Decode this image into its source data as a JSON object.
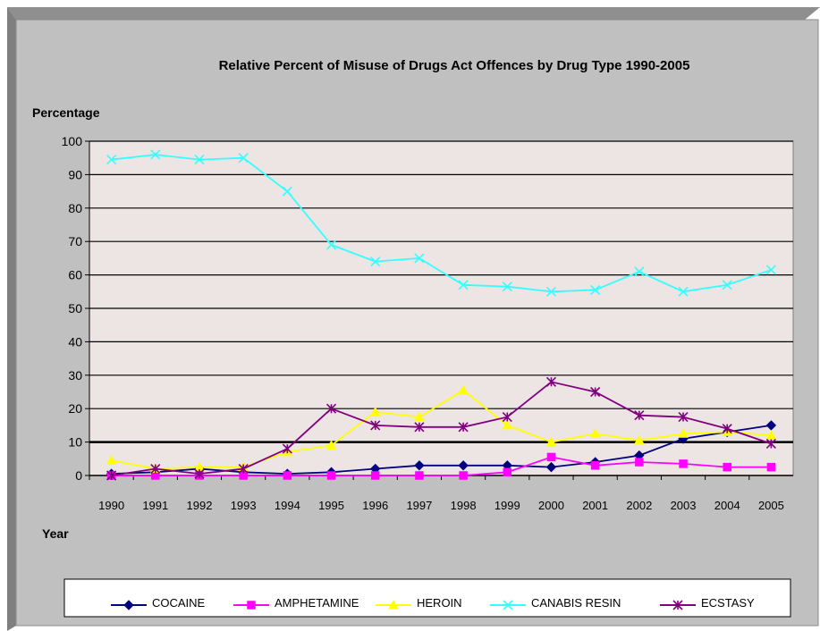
{
  "chart_data": {
    "type": "line",
    "title": "Relative Percent of Misuse of Drugs Act Offences by Drug Type 1990-2005",
    "ylabel": "Percentage",
    "xlabel": "Year",
    "ylim": [
      0,
      100
    ],
    "yticks": [
      "0",
      "10",
      "20",
      "30",
      "40",
      "50",
      "60",
      "70",
      "80",
      "90",
      "100"
    ],
    "categories": [
      "1990",
      "1991",
      "1992",
      "1993",
      "1994",
      "1995",
      "1996",
      "1997",
      "1998",
      "1999",
      "2000",
      "2001",
      "2002",
      "2003",
      "2004",
      "2005"
    ],
    "grid": true,
    "legend_position": "bottom",
    "series": [
      {
        "name": "COCAINE",
        "color": "#000080",
        "marker": "diamond",
        "values": [
          0.5,
          1,
          2,
          1,
          0.5,
          1,
          2,
          3,
          3,
          3,
          2.5,
          4,
          6,
          11,
          13,
          15
        ]
      },
      {
        "name": "AMPHETAMINE",
        "color": "#ff00ff",
        "marker": "square",
        "values": [
          0,
          0,
          0,
          0,
          0,
          0,
          0,
          0,
          0,
          1,
          5.5,
          3,
          4,
          3.5,
          2.5,
          2.5
        ]
      },
      {
        "name": "HEROIN",
        "color": "#ffff00",
        "marker": "triangle",
        "values": [
          4.5,
          2,
          2.5,
          2.5,
          7,
          9,
          19,
          17.5,
          25.5,
          15,
          10,
          12.5,
          10.5,
          12.5,
          13,
          12
        ]
      },
      {
        "name": "CANABIS RESIN",
        "color": "#33ffff",
        "marker": "x",
        "values": [
          94.5,
          96,
          94.5,
          95,
          85,
          69,
          64,
          65,
          57,
          56.5,
          55,
          55.5,
          61,
          55,
          57,
          61.5
        ]
      },
      {
        "name": "ECSTASY",
        "color": "#800080",
        "marker": "star",
        "values": [
          0,
          2,
          0.5,
          2,
          8,
          20,
          15,
          14.5,
          14.5,
          17.5,
          28,
          25,
          18,
          17.5,
          14,
          9.5
        ]
      }
    ]
  }
}
